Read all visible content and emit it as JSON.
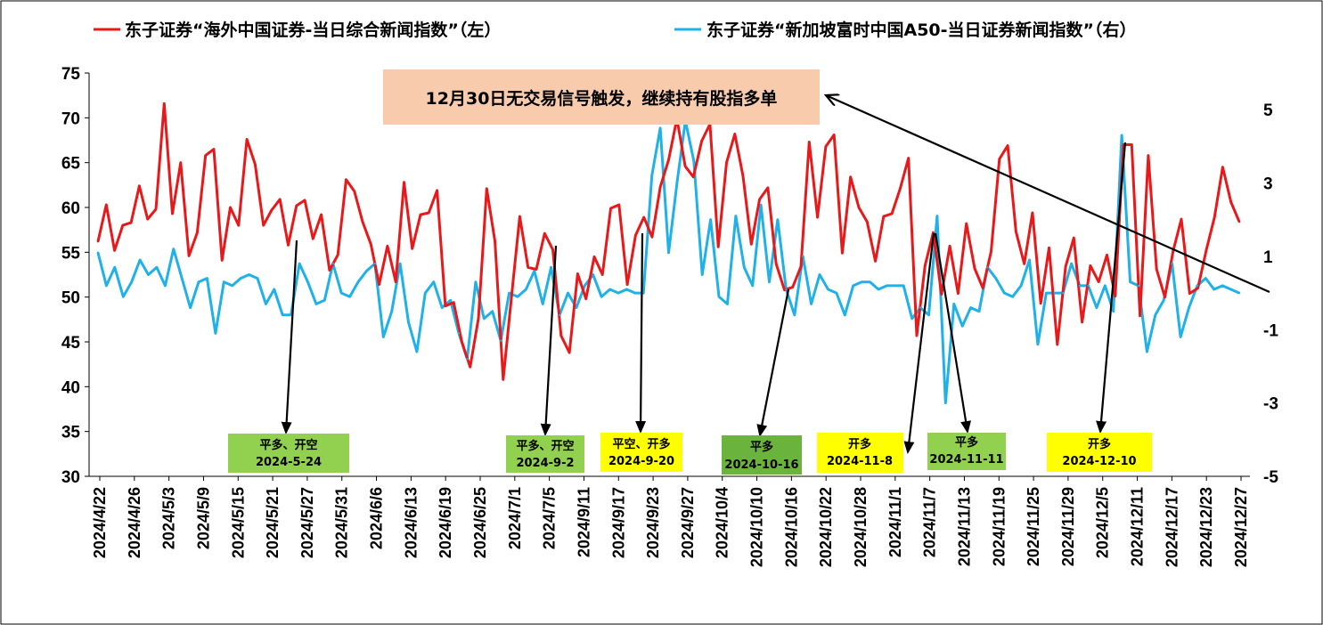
{
  "colors": {
    "left_series": "#e8191b",
    "right_series": "#1fb1e8",
    "note_box": "#f8cbad",
    "signal_green": "#92d050",
    "signal_dark_green": "#6ab43d",
    "signal_yellow": "#ffff00",
    "arrow": "#000000"
  },
  "chart_data": {
    "type": "line",
    "legend_placement": "top",
    "grid": false,
    "left_axis": {
      "ylim": [
        30,
        75
      ],
      "ticks": [
        "30",
        "35",
        "40",
        "45",
        "50",
        "55",
        "60",
        "65",
        "70",
        "75"
      ]
    },
    "right_axis": {
      "ylim": [
        -5,
        6
      ],
      "ticks": [
        "-5",
        "-3",
        "-1",
        "1",
        "3",
        "5"
      ]
    },
    "x_tick_labels": [
      "2024/4/22",
      "2024/4/26",
      "2024/5/3",
      "2024/5/9",
      "2024/5/15",
      "2024/5/21",
      "2024/5/27",
      "2024/5/31",
      "2024/6/6",
      "2024/6/13",
      "2024/6/19",
      "2024/6/25",
      "2024/7/1",
      "2024/7/5",
      "2024/9/11",
      "2024/9/17",
      "2024/9/23",
      "2024/9/27",
      "2024/10/4",
      "2024/10/10",
      "2024/10/16",
      "2024/10/22",
      "2024/10/28",
      "2024/11/1",
      "2024/11/7",
      "2024/11/13",
      "2024/11/19",
      "2024/11/25",
      "2024/11/29",
      "2024/12/5",
      "2024/12/11",
      "2024/12/17",
      "2024/12/23",
      "2024/12/27"
    ],
    "series": [
      {
        "name": "东子证券“海外中国证券-当日综合新闻指数”（左）",
        "axis": "left",
        "values": [
          56.2,
          60.3,
          55.2,
          58.0,
          58.3,
          62.4,
          58.7,
          59.8,
          71.6,
          59.3,
          65.0,
          54.6,
          57.2,
          65.8,
          66.5,
          54.1,
          60.0,
          58.0,
          67.6,
          64.8,
          58.0,
          59.7,
          60.9,
          55.8,
          60.2,
          60.8,
          56.5,
          59.2,
          53.0,
          54.7,
          63.1,
          61.8,
          58.4,
          55.9,
          51.4,
          55.7,
          51.7,
          62.8,
          55.4,
          59.2,
          59.4,
          61.9,
          49.0,
          49.4,
          45.0,
          42.2,
          47.6,
          62.1,
          56.2,
          40.8,
          50.0,
          59.0,
          53.3,
          53.1,
          57.1,
          55.3,
          45.7,
          43.8,
          52.6,
          49.8,
          54.5,
          52.5,
          59.9,
          60.3,
          51.4,
          56.9,
          58.9,
          56.7,
          62.3,
          65.3,
          69.9,
          64.6,
          63.4,
          67.4,
          69.3,
          55.6,
          65.0,
          68.2,
          63.5,
          55.9,
          60.9,
          62.2,
          53.7,
          50.8,
          51.1,
          53.4,
          67.3,
          58.9,
          66.8,
          68.1,
          54.9,
          63.4,
          60.0,
          58.4,
          54.0,
          59.0,
          59.3,
          62.1,
          65.5,
          45.7,
          53.5,
          57.2,
          50.3,
          55.7,
          50.4,
          58.2,
          53.2,
          51.0,
          55.1,
          65.4,
          66.9,
          57.3,
          53.7,
          59.4,
          49.3,
          55.5,
          44.7,
          53.4,
          56.6,
          47.2,
          53.5,
          51.7,
          54.7,
          50.1,
          67.0,
          67.0,
          47.9,
          65.8,
          53.1,
          50.0,
          55.1,
          58.7,
          50.4,
          51.0,
          55.2,
          58.9,
          64.5,
          60.6,
          58.4
        ]
      },
      {
        "name": "东子证券“新加坡富时中国A50-当日证券新闻指数”（右）",
        "axis": "right",
        "values": [
          1.1,
          0.2,
          0.7,
          -0.1,
          0.3,
          0.9,
          0.5,
          0.7,
          0.2,
          1.2,
          0.4,
          -0.4,
          0.3,
          0.4,
          -1.1,
          0.3,
          0.2,
          0.4,
          0.5,
          0.4,
          -0.3,
          0.1,
          -0.6,
          -0.6,
          0.8,
          0.3,
          -0.3,
          -0.2,
          0.8,
          0.0,
          -0.1,
          0.3,
          0.6,
          0.8,
          -1.2,
          -0.5,
          0.8,
          -0.8,
          -1.6,
          0.0,
          0.3,
          -0.4,
          -0.2,
          -1.1,
          -1.8,
          0.3,
          -0.7,
          -0.5,
          -1.3,
          0.0,
          -0.1,
          0.1,
          0.6,
          -0.3,
          0.7,
          -0.6,
          0.0,
          -0.4,
          0.2,
          0.5,
          -0.1,
          0.1,
          0.0,
          0.1,
          0.0,
          0.0,
          3.2,
          4.5,
          1.1,
          3.0,
          4.7,
          3.6,
          0.5,
          2.0,
          -0.1,
          -0.3,
          2.1,
          0.7,
          0.2,
          2.4,
          0.3,
          2.0,
          0.1,
          -0.6,
          1.0,
          -0.3,
          0.5,
          0.1,
          0.0,
          -0.6,
          0.2,
          0.3,
          0.3,
          0.1,
          0.2,
          0.2,
          0.2,
          -0.7,
          -0.4,
          -0.6,
          2.1,
          -3.0,
          -0.3,
          -0.9,
          -0.4,
          -0.5,
          0.7,
          0.4,
          0.0,
          -0.1,
          0.2,
          0.9,
          -1.4,
          0.0,
          0.0,
          0.0,
          0.8,
          0.2,
          0.2,
          -0.4,
          0.2,
          -0.5,
          4.3,
          0.3,
          0.2,
          -1.6,
          -0.6,
          -0.2,
          0.8,
          -1.2,
          -0.4,
          0.2,
          0.4,
          0.1,
          0.2,
          0.1,
          0.0
        ]
      }
    ],
    "annotations": {
      "note": "12月30日无交易信号触发，继续持有股指多单",
      "signal_boxes": [
        {
          "lines": [
            "平多、开空",
            "2024-5-24"
          ],
          "style": "green"
        },
        {
          "lines": [
            "平多、开空",
            "2024-9-2"
          ],
          "style": "green"
        },
        {
          "lines": [
            "平空、开多",
            "2024-9-20"
          ],
          "style": "yellow"
        },
        {
          "lines": [
            "平多",
            "2024-10-16"
          ],
          "style": "dark_green"
        },
        {
          "lines": [
            "开多",
            "2024-11-8"
          ],
          "style": "yellow"
        },
        {
          "lines": [
            "平多",
            "2024-11-11"
          ],
          "style": "green"
        },
        {
          "lines": [
            "开多",
            "2024-12-10"
          ],
          "style": "yellow"
        }
      ]
    }
  }
}
